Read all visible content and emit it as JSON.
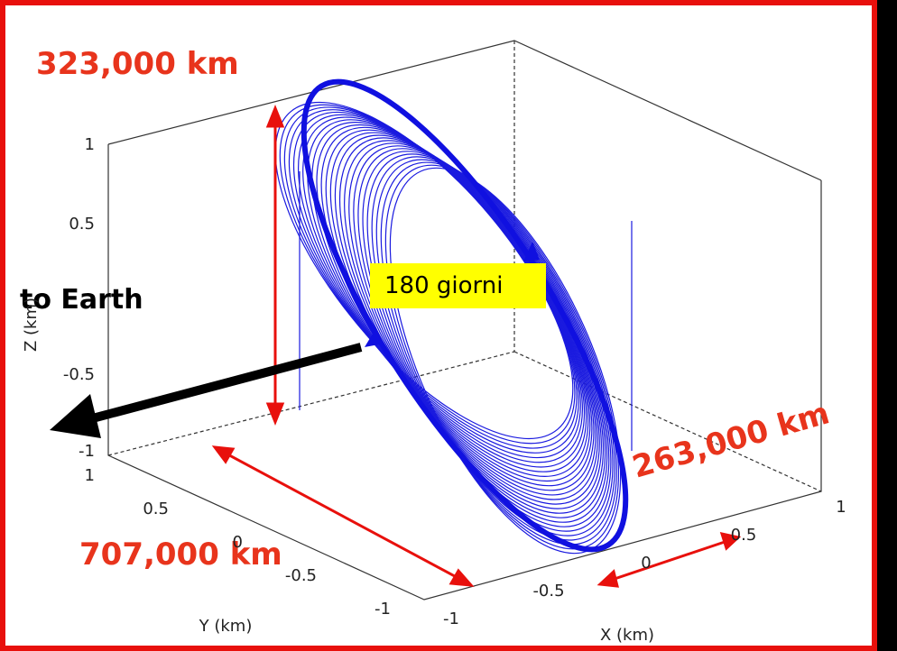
{
  "annotations": {
    "top": "323,000 km",
    "earth": "to Earth",
    "period": "180 giorni",
    "x_extent": "263,000 km",
    "y_extent": "707,000 km"
  },
  "axes": {
    "z_label": "Z (km)",
    "y_label": "Y (km)",
    "x_label": "X (km)",
    "z_ticks": [
      "1",
      "0.5",
      "-0.5",
      "-1"
    ],
    "y_ticks": [
      "1",
      "0.5",
      "0",
      "-0.5",
      "-1"
    ],
    "x_ticks": [
      "-1",
      "-0.5",
      "0",
      "0.5",
      "1"
    ]
  }
}
